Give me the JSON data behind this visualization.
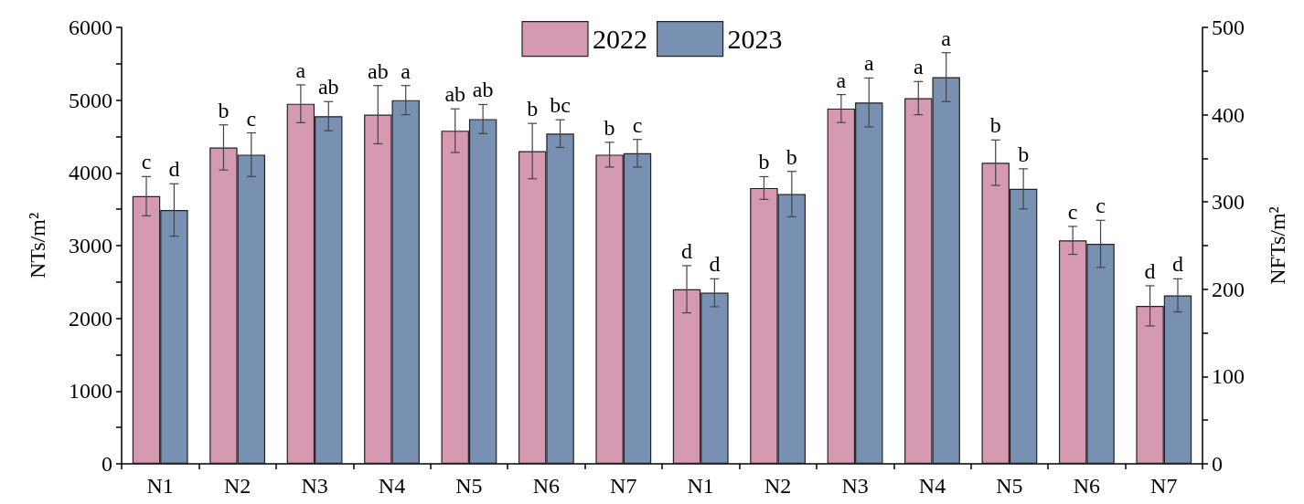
{
  "chart_data": {
    "type": "bar",
    "categories": [
      "N1",
      "N2",
      "N3",
      "N4",
      "N5",
      "N6",
      "N7",
      "N1",
      "N2",
      "N3",
      "N4",
      "N5",
      "N6",
      "N7"
    ],
    "ylabel": "NTs/m²",
    "y2label": "NFTs/m²",
    "ylim": [
      0,
      6000
    ],
    "yticks": [
      0,
      {
        "value": 500,
        "label": null
      },
      1000,
      {
        "value": 1500,
        "label": null
      },
      2000,
      {
        "value": 2500,
        "label": null
      },
      3000,
      {
        "value": 3500,
        "label": null
      },
      4000,
      {
        "value": 4500,
        "label": null
      },
      5000,
      {
        "value": 5500,
        "label": null
      },
      6000
    ],
    "y2lim": [
      0,
      500
    ],
    "y2ticks": [
      0,
      {
        "value": 50,
        "label": null
      },
      100,
      {
        "value": 150,
        "label": null
      },
      200,
      {
        "value": 250,
        "label": null
      },
      300,
      {
        "value": 350,
        "label": null
      },
      400,
      {
        "value": 450,
        "label": null
      },
      500
    ],
    "legend": "top",
    "series": [
      {
        "name": "2022",
        "color": "#d699b2",
        "axis": "y",
        "values": [
          3680,
          4350,
          4950,
          4800,
          4580,
          4300,
          4250,
          null,
          null,
          null,
          null,
          null,
          null,
          null
        ],
        "errors": [
          270,
          310,
          260,
          400,
          300,
          380,
          170,
          null,
          null,
          null,
          null,
          null,
          null,
          null
        ],
        "value_labels": [
          "c",
          "b",
          "a",
          "ab",
          "ab",
          "b",
          "b",
          null,
          null,
          null,
          null,
          null,
          null,
          null
        ]
      },
      {
        "name": "2023",
        "color": "#7891b3",
        "axis": "y",
        "values": [
          3490,
          4250,
          4780,
          5000,
          4740,
          4540,
          4270,
          null,
          null,
          null,
          null,
          null,
          null,
          null
        ],
        "errors": [
          360,
          300,
          200,
          200,
          200,
          190,
          190,
          null,
          null,
          null,
          null,
          null,
          null,
          null
        ],
        "value_labels": [
          "d",
          "c",
          "ab",
          "a",
          "ab",
          "bc",
          "c",
          null,
          null,
          null,
          null,
          null,
          null,
          null
        ]
      },
      {
        "color": "#d699b2",
        "axis": "y2",
        "values": [
          null,
          null,
          null,
          null,
          null,
          null,
          null,
          200,
          316,
          407,
          419,
          345,
          256,
          181
        ],
        "errors": [
          null,
          null,
          null,
          null,
          null,
          null,
          null,
          27,
          13,
          16,
          19,
          26,
          16,
          23
        ],
        "value_labels": [
          null,
          null,
          null,
          null,
          null,
          null,
          null,
          "d",
          "b",
          "a",
          "a",
          "b",
          "c",
          "d"
        ]
      },
      {
        "color": "#7891b3",
        "axis": "y2",
        "values": [
          null,
          null,
          null,
          null,
          null,
          null,
          null,
          196,
          309,
          414,
          443,
          315,
          252,
          193
        ],
        "errors": [
          null,
          null,
          null,
          null,
          null,
          null,
          null,
          16,
          26,
          28,
          28,
          23,
          27,
          19
        ],
        "value_labels": [
          null,
          null,
          null,
          null,
          null,
          null,
          null,
          "d",
          "b",
          "a",
          "a",
          "b",
          "c",
          "d"
        ]
      }
    ]
  }
}
